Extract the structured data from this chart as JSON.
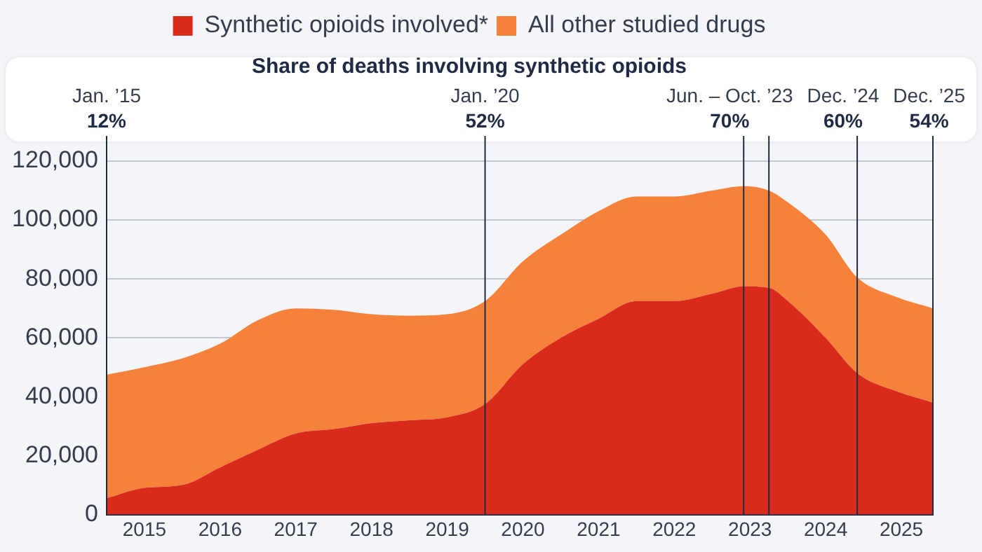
{
  "chart_data": {
    "type": "area",
    "subtitle": "Share of deaths involving synthetic opioids",
    "stacked": true,
    "legend": "top",
    "grid": "y",
    "marker": "none",
    "x": [
      "2015-01",
      "2015-07",
      "2016-01",
      "2016-07",
      "2017-01",
      "2017-07",
      "2018-01",
      "2018-07",
      "2019-01",
      "2019-07",
      "2020-01",
      "2020-07",
      "2021-01",
      "2021-07",
      "2022-01",
      "2022-07",
      "2023-01",
      "2023-06",
      "2023-10",
      "2024-01",
      "2024-07",
      "2024-12",
      "2025-06",
      "2025-12"
    ],
    "series": [
      {
        "name": "Synthetic opioids involved*",
        "color": "#d92b1c",
        "values": [
          5500,
          9000,
          10000,
          16000,
          22000,
          27500,
          29000,
          31000,
          32000,
          33000,
          37500,
          51000,
          60000,
          66500,
          72500,
          72500,
          75000,
          77500,
          77000,
          72500,
          60000,
          48000,
          42000,
          38000
        ]
      },
      {
        "name": "All other studied drugs",
        "color": "#f5813b",
        "values": [
          42000,
          41000,
          43000,
          42000,
          44000,
          42500,
          40500,
          37000,
          35500,
          35000,
          35000,
          35000,
          35000,
          36500,
          35500,
          35500,
          35000,
          34000,
          33000,
          33500,
          35000,
          32500,
          32000,
          32000
        ]
      }
    ],
    "xlim": [
      "2015-01",
      "2025-12"
    ],
    "xticks": [
      {
        "value": "2015-07",
        "label": "2015"
      },
      {
        "value": "2016-07",
        "label": "2016"
      },
      {
        "value": "2017-07",
        "label": "2017"
      },
      {
        "value": "2018-07",
        "label": "2018"
      },
      {
        "value": "2019-07",
        "label": "2019"
      },
      {
        "value": "2020-07",
        "label": "2020"
      },
      {
        "value": "2021-07",
        "label": "2021"
      },
      {
        "value": "2022-07",
        "label": "2022"
      },
      {
        "value": "2023-07",
        "label": "2023"
      },
      {
        "value": "2024-07",
        "label": "2024"
      },
      {
        "value": "2025-07",
        "label": "2025"
      }
    ],
    "ylim": [
      0,
      120000
    ],
    "yticks": [
      0,
      {
        "value": 20000,
        "label": "20,000"
      },
      {
        "value": 40000,
        "label": "40,000"
      },
      {
        "value": 60000,
        "label": "60,000"
      },
      {
        "value": 80000,
        "label": "80,000"
      },
      {
        "value": 100000,
        "label": "100,000"
      },
      {
        "value": 120000,
        "label": "120,000"
      }
    ],
    "ref_lines": [
      {
        "axis": "x",
        "value": "2015-01",
        "label": "Jan. ’15"
      },
      {
        "axis": "x",
        "value": "2020-01",
        "label": "Jan. ’20"
      },
      {
        "axis": "x",
        "value": "2023-06",
        "label": null
      },
      {
        "axis": "x",
        "value": "2023-10",
        "label": "Jun. – Oct. ’23"
      },
      {
        "axis": "x",
        "value": "2024-12",
        "label": "Dec. ’24"
      },
      {
        "axis": "x",
        "value": "2025-12",
        "label": "Dec. ’25"
      }
    ],
    "annotations": [
      "12%",
      "52%",
      "70%",
      "60%",
      "54%"
    ]
  }
}
